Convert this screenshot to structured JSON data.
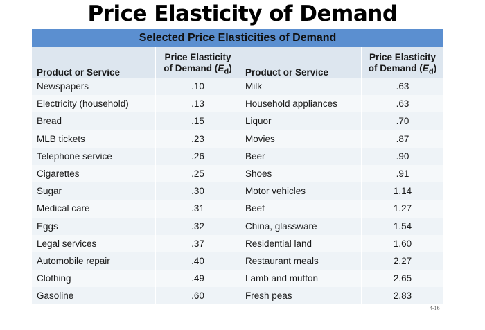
{
  "title": "Price Elasticity of Demand",
  "table": {
    "caption": "Selected Price Elasticities of Demand",
    "headers": {
      "product": "Product or Service",
      "elasticity_line1": "Price Elasticity",
      "elasticity_line2": "of Demand (",
      "E": "E",
      "d": "d",
      "close": ")"
    },
    "rows": [
      {
        "p1": "Newspapers",
        "e1": ".10",
        "p2": "Milk",
        "e2": ".63"
      },
      {
        "p1": "Electricity (household)",
        "e1": ".13",
        "p2": "Household appliances",
        "e2": ".63"
      },
      {
        "p1": "Bread",
        "e1": ".15",
        "p2": "Liquor",
        "e2": ".70"
      },
      {
        "p1": "MLB tickets",
        "e1": ".23",
        "p2": "Movies",
        "e2": ".87"
      },
      {
        "p1": "Telephone service",
        "e1": ".26",
        "p2": "Beer",
        "e2": ".90"
      },
      {
        "p1": "Cigarettes",
        "e1": ".25",
        "p2": "Shoes",
        "e2": ".91"
      },
      {
        "p1": "Sugar",
        "e1": ".30",
        "p2": "Motor vehicles",
        "e2": "1.14"
      },
      {
        "p1": "Medical care",
        "e1": ".31",
        "p2": "Beef",
        "e2": "1.27"
      },
      {
        "p1": "Eggs",
        "e1": ".32",
        "p2": "China, glassware",
        "e2": "1.54"
      },
      {
        "p1": "Legal services",
        "e1": ".37",
        "p2": "Residential land",
        "e2": "1.60"
      },
      {
        "p1": "Automobile repair",
        "e1": ".40",
        "p2": "Restaurant meals",
        "e2": "2.27"
      },
      {
        "p1": "Clothing",
        "e1": ".49",
        "p2": "Lamb and mutton",
        "e2": "2.65"
      },
      {
        "p1": "Gasoline",
        "e1": ".60",
        "p2": "Fresh peas",
        "e2": "2.83"
      }
    ]
  },
  "page_number": "4-16",
  "colors": {
    "banner": "#5b8fd0",
    "header": "#dde6ef"
  }
}
